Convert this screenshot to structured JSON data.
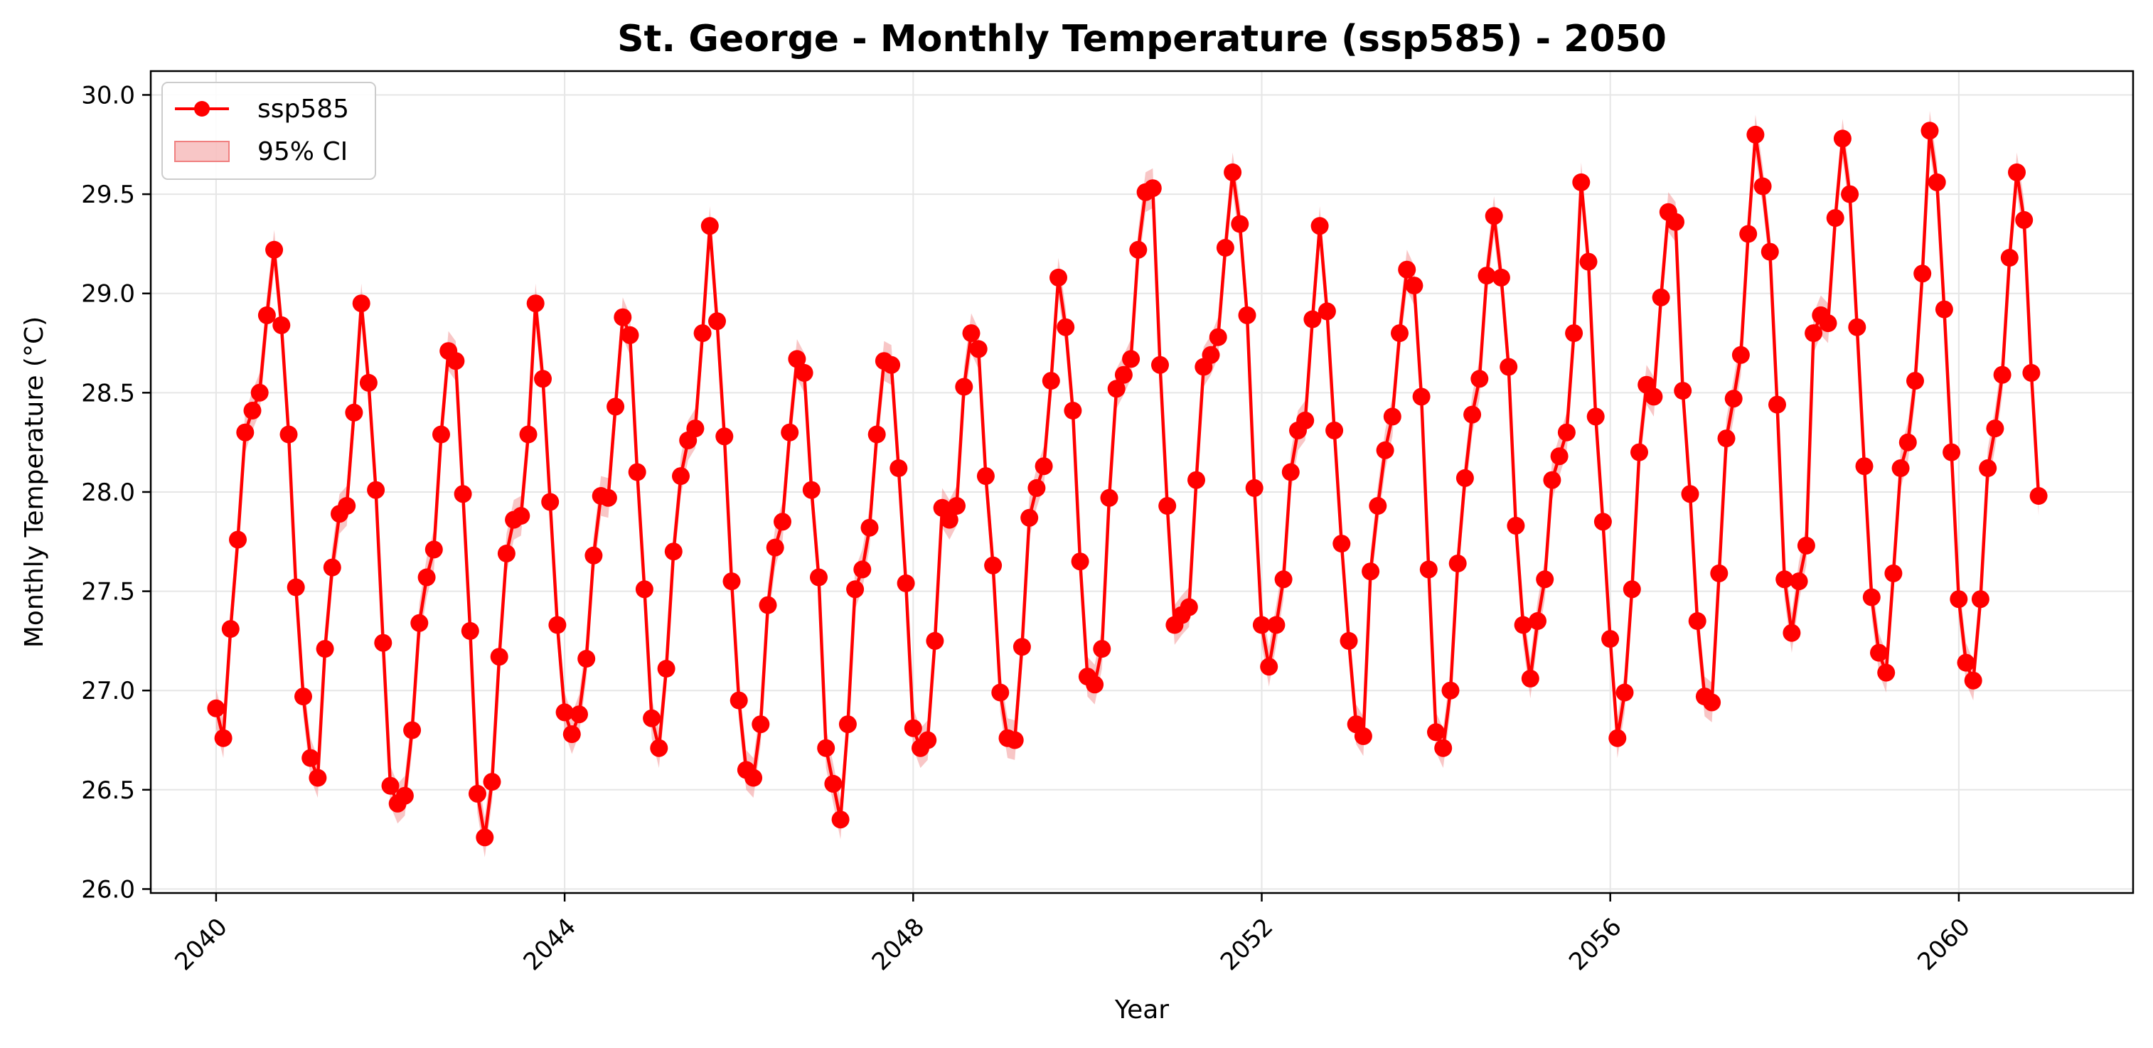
{
  "chart_data": {
    "type": "line",
    "title": "St. George - Monthly Temperature (ssp585) - 2050",
    "xlabel": "Year",
    "ylabel": "Monthly Temperature (°C)",
    "xlim": [
      2039.25,
      2062.0
    ],
    "ylim": [
      25.98,
      30.12
    ],
    "xticks": [
      2040,
      2044,
      2048,
      2052,
      2056,
      2060
    ],
    "xtick_labels": [
      "2040",
      "2044",
      "2048",
      "2052",
      "2056",
      "2060"
    ],
    "yticks": [
      26.0,
      26.5,
      27.0,
      27.5,
      28.0,
      28.5,
      29.0,
      29.5,
      30.0
    ],
    "ytick_labels": [
      "26.0",
      "26.5",
      "27.0",
      "27.5",
      "28.0",
      "28.5",
      "29.0",
      "29.5",
      "30.0"
    ],
    "grid": true,
    "legend_position": "top-left",
    "legend": [
      {
        "label": "ssp585",
        "kind": "line-marker",
        "color": "#ff0000"
      },
      {
        "label": "95% CI",
        "kind": "band",
        "color": "#f08080"
      }
    ],
    "x_start": 2040.0,
    "x_step": 0.08333,
    "ci_halfwidth": 0.1,
    "series": [
      {
        "name": "ssp585",
        "color": "#ff0000",
        "values": [
          26.91,
          26.76,
          27.31,
          27.76,
          28.3,
          28.41,
          28.5,
          28.89,
          29.22,
          28.84,
          28.29,
          27.52,
          26.97,
          26.66,
          26.56,
          27.21,
          27.62,
          27.89,
          27.93,
          28.4,
          28.95,
          28.55,
          28.01,
          27.24,
          26.52,
          26.43,
          26.47,
          26.8,
          27.34,
          27.57,
          27.71,
          28.29,
          28.71,
          28.66,
          27.99,
          27.3,
          26.48,
          26.26,
          26.54,
          27.17,
          27.69,
          27.86,
          27.88,
          28.29,
          28.95,
          28.57,
          27.95,
          27.33,
          26.89,
          26.78,
          26.88,
          27.16,
          27.68,
          27.98,
          27.97,
          28.43,
          28.88,
          28.79,
          28.1,
          27.51,
          26.86,
          26.71,
          27.11,
          27.7,
          28.08,
          28.26,
          28.32,
          28.8,
          29.34,
          28.86,
          28.28,
          27.55,
          26.95,
          26.6,
          26.56,
          26.83,
          27.43,
          27.72,
          27.85,
          28.3,
          28.67,
          28.6,
          28.01,
          27.57,
          26.71,
          26.53,
          26.35,
          26.83,
          27.51,
          27.61,
          27.82,
          28.29,
          28.66,
          28.64,
          28.12,
          27.54,
          26.81,
          26.71,
          26.75,
          27.25,
          27.92,
          27.86,
          27.93,
          28.53,
          28.8,
          28.72,
          28.08,
          27.63,
          26.99,
          26.76,
          26.75,
          27.22,
          27.87,
          28.02,
          28.13,
          28.56,
          29.08,
          28.83,
          28.41,
          27.65,
          27.07,
          27.03,
          27.21,
          27.97,
          28.52,
          28.59,
          28.67,
          29.22,
          29.51,
          29.53,
          28.64,
          27.93,
          27.33,
          27.38,
          27.42,
          28.06,
          28.63,
          28.69,
          28.78,
          29.23,
          29.61,
          29.35,
          28.89,
          28.02,
          27.33,
          27.12,
          27.33,
          27.56,
          28.1,
          28.31,
          28.36,
          28.87,
          29.34,
          28.91,
          28.31,
          27.74,
          27.25,
          26.83,
          26.77,
          27.6,
          27.93,
          28.21,
          28.38,
          28.8,
          29.12,
          29.04,
          28.48,
          27.61,
          26.79,
          26.71,
          27.0,
          27.64,
          28.07,
          28.39,
          28.57,
          29.09,
          29.39,
          29.08,
          28.63,
          27.83,
          27.33,
          27.06,
          27.35,
          27.56,
          28.06,
          28.18,
          28.3,
          28.8,
          29.56,
          29.16,
          28.38,
          27.85,
          27.26,
          26.76,
          26.99,
          27.51,
          28.2,
          28.54,
          28.48,
          28.98,
          29.41,
          29.36,
          28.51,
          27.99,
          27.35,
          26.97,
          26.94,
          27.59,
          28.27,
          28.47,
          28.69,
          29.3,
          29.8,
          29.54,
          29.21,
          28.44,
          27.56,
          27.29,
          27.55,
          27.73,
          28.8,
          28.89,
          28.85,
          29.38,
          29.78,
          29.5,
          28.83,
          28.13,
          27.47,
          27.19,
          27.09,
          27.59,
          28.12,
          28.25,
          28.56,
          29.1,
          29.82,
          29.56,
          28.92,
          28.2,
          27.46,
          27.14,
          27.05,
          27.46,
          28.12,
          28.32,
          28.59,
          29.18,
          29.61,
          29.37,
          28.6,
          27.98
        ]
      }
    ]
  }
}
